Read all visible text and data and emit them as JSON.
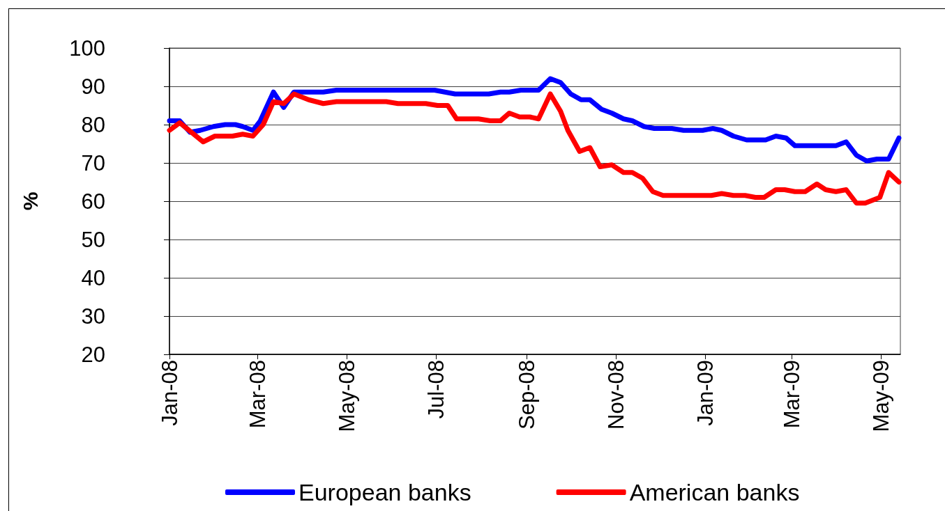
{
  "chart_data": {
    "type": "line",
    "ylabel": "%",
    "xlim": [
      "2008-01-01",
      "2009-05-14"
    ],
    "xticks": [
      {
        "value": "2008-01-01",
        "label": "Jan-08"
      },
      {
        "value": "2008-03-01",
        "label": "Mar-08"
      },
      {
        "value": "2008-05-01",
        "label": "May-08"
      },
      {
        "value": "2008-07-01",
        "label": "Jul-08"
      },
      {
        "value": "2008-09-01",
        "label": "Sep-08"
      },
      {
        "value": "2008-11-01",
        "label": "Nov-08"
      },
      {
        "value": "2009-01-01",
        "label": "Jan-09"
      },
      {
        "value": "2009-03-01",
        "label": "Mar-09"
      },
      {
        "value": "2009-05-01",
        "label": "May-09"
      }
    ],
    "ylim": [
      20,
      100
    ],
    "yticks": [
      20,
      30,
      40,
      50,
      60,
      70,
      80,
      90,
      100
    ],
    "grid": "y",
    "legend": "bottom",
    "marker": "none",
    "line_style": "solid",
    "series": [
      {
        "name": "European banks",
        "color": "#0000ff",
        "x": [
          "2008-01-01",
          "2008-01-08",
          "2008-01-15",
          "2008-01-22",
          "2008-01-31",
          "2008-02-08",
          "2008-02-15",
          "2008-02-20",
          "2008-02-27",
          "2008-03-03",
          "2008-03-12",
          "2008-03-19",
          "2008-03-26",
          "2008-04-02",
          "2008-04-15",
          "2008-04-24",
          "2008-06-30",
          "2008-07-14",
          "2008-08-06",
          "2008-08-14",
          "2008-08-20",
          "2008-08-28",
          "2008-09-09",
          "2008-09-17",
          "2008-09-24",
          "2008-10-01",
          "2008-10-08",
          "2008-10-14",
          "2008-10-22",
          "2008-10-29",
          "2008-11-06",
          "2008-11-12",
          "2008-11-20",
          "2008-11-27",
          "2008-12-09",
          "2008-12-17",
          "2008-12-30",
          "2009-01-06",
          "2009-01-12",
          "2009-01-20",
          "2009-01-29",
          "2009-02-11",
          "2009-02-18",
          "2009-02-25",
          "2009-03-03",
          "2009-03-31",
          "2009-04-07",
          "2009-04-14",
          "2009-04-21",
          "2009-04-28",
          "2009-05-06",
          "2009-05-13"
        ],
        "values": [
          81,
          81,
          78,
          78.5,
          79.5,
          80,
          80,
          79.5,
          78.5,
          81,
          88.5,
          84.5,
          88.5,
          88.5,
          88.5,
          89,
          89,
          88,
          88,
          88.5,
          88.5,
          89,
          89,
          92,
          91,
          88,
          86.5,
          86.5,
          84,
          83,
          81.5,
          81,
          79.5,
          79,
          79,
          78.5,
          78.5,
          79,
          78.5,
          77,
          76,
          76,
          77,
          76.5,
          74.5,
          74.5,
          75.5,
          72,
          70.5,
          71,
          71,
          76.5
        ]
      },
      {
        "name": "American banks",
        "color": "#ff0000",
        "x": [
          "2008-01-01",
          "2008-01-08",
          "2008-01-24",
          "2008-02-01",
          "2008-02-13",
          "2008-02-20",
          "2008-02-27",
          "2008-03-05",
          "2008-03-12",
          "2008-03-19",
          "2008-03-26",
          "2008-04-05",
          "2008-04-15",
          "2008-04-24",
          "2008-05-28",
          "2008-06-05",
          "2008-06-24",
          "2008-07-02",
          "2008-07-09",
          "2008-07-15",
          "2008-07-30",
          "2008-08-07",
          "2008-08-14",
          "2008-08-20",
          "2008-08-27",
          "2008-09-03",
          "2008-09-09",
          "2008-09-17",
          "2008-09-24",
          "2008-09-29",
          "2008-10-07",
          "2008-10-14",
          "2008-10-21",
          "2008-10-29",
          "2008-11-06",
          "2008-11-12",
          "2008-11-19",
          "2008-11-26",
          "2008-12-03",
          "2009-01-05",
          "2009-01-12",
          "2009-01-20",
          "2009-01-28",
          "2009-02-04",
          "2009-02-10",
          "2009-02-18",
          "2009-02-24",
          "2009-03-03",
          "2009-03-10",
          "2009-03-18",
          "2009-03-24",
          "2009-03-31",
          "2009-04-07",
          "2009-04-14",
          "2009-04-20",
          "2009-04-30",
          "2009-05-06",
          "2009-05-13"
        ],
        "values": [
          78.5,
          80.5,
          75.5,
          77,
          77,
          77.5,
          77,
          80,
          86,
          85.5,
          88,
          86.5,
          85.5,
          86,
          86,
          85.5,
          85.5,
          85,
          85,
          81.5,
          81.5,
          81,
          81,
          83,
          82,
          82,
          81.5,
          88,
          83.5,
          78.5,
          73,
          74,
          69,
          69.5,
          67.5,
          67.5,
          66,
          62.5,
          61.5,
          61.5,
          62,
          61.5,
          61.5,
          61,
          61,
          63,
          63,
          62.5,
          62.5,
          64.5,
          63,
          62.5,
          63,
          59.5,
          59.5,
          61,
          67.5,
          65
        ]
      }
    ]
  }
}
